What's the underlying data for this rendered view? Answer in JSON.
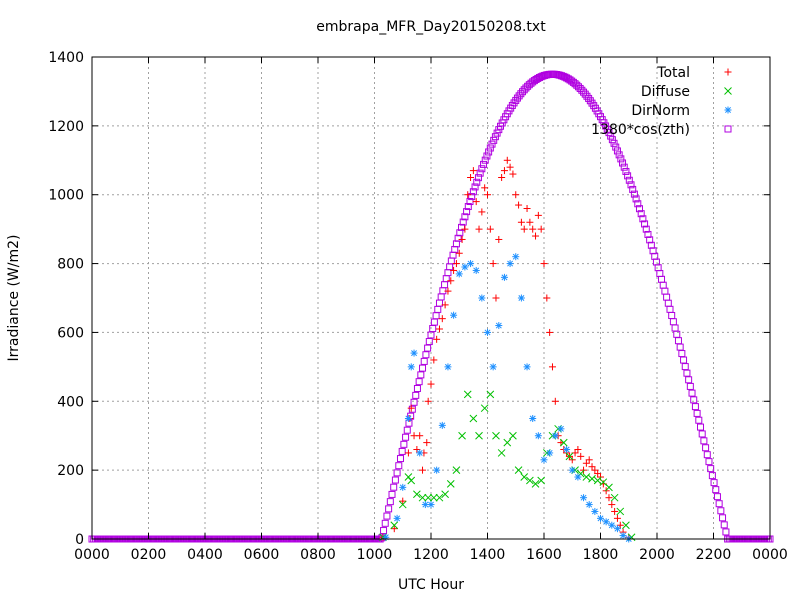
{
  "chart_data": {
    "type": "scatter",
    "title": "embrapa_MFR_Day20150208.txt",
    "xlabel": "UTC Hour",
    "ylabel": "Irradiance (W/m2)",
    "xlim": [
      0,
      24
    ],
    "ylim": [
      0,
      1400
    ],
    "x_ticks": [
      "0000",
      "0200",
      "0400",
      "0600",
      "0800",
      "1000",
      "1200",
      "1400",
      "1600",
      "1800",
      "2000",
      "2200",
      "0000"
    ],
    "y_ticks": [
      "0",
      "200",
      "400",
      "600",
      "800",
      "1000",
      "1200",
      "1400"
    ],
    "grid": true,
    "legend_position": "top-right",
    "series": [
      {
        "name": "Total",
        "color": "#ff0000",
        "marker": "plus",
        "points": [
          [
            10.3,
            5
          ],
          [
            10.7,
            30
          ],
          [
            11.0,
            110
          ],
          [
            11.2,
            250
          ],
          [
            11.25,
            350
          ],
          [
            11.3,
            380
          ],
          [
            11.4,
            300
          ],
          [
            11.5,
            260
          ],
          [
            11.6,
            300
          ],
          [
            11.7,
            200
          ],
          [
            11.75,
            250
          ],
          [
            11.85,
            280
          ],
          [
            11.9,
            400
          ],
          [
            12.0,
            450
          ],
          [
            12.1,
            520
          ],
          [
            12.2,
            580
          ],
          [
            12.3,
            610
          ],
          [
            12.4,
            640
          ],
          [
            12.5,
            680
          ],
          [
            12.6,
            720
          ],
          [
            12.7,
            750
          ],
          [
            12.8,
            780
          ],
          [
            12.9,
            800
          ],
          [
            13.0,
            830
          ],
          [
            13.1,
            870
          ],
          [
            13.2,
            900
          ],
          [
            13.3,
            1000
          ],
          [
            13.4,
            1050
          ],
          [
            13.5,
            1070
          ],
          [
            13.6,
            980
          ],
          [
            13.7,
            900
          ],
          [
            13.8,
            950
          ],
          [
            13.9,
            1020
          ],
          [
            14.0,
            1000
          ],
          [
            14.1,
            900
          ],
          [
            14.2,
            800
          ],
          [
            14.3,
            700
          ],
          [
            14.4,
            870
          ],
          [
            14.5,
            1050
          ],
          [
            14.6,
            1070
          ],
          [
            14.7,
            1100
          ],
          [
            14.8,
            1080
          ],
          [
            14.9,
            1060
          ],
          [
            15.0,
            1000
          ],
          [
            15.1,
            970
          ],
          [
            15.2,
            920
          ],
          [
            15.3,
            900
          ],
          [
            15.4,
            960
          ],
          [
            15.5,
            920
          ],
          [
            15.6,
            900
          ],
          [
            15.7,
            880
          ],
          [
            15.8,
            940
          ],
          [
            15.9,
            900
          ],
          [
            16.0,
            800
          ],
          [
            16.1,
            700
          ],
          [
            16.2,
            600
          ],
          [
            16.3,
            500
          ],
          [
            16.4,
            400
          ],
          [
            16.5,
            300
          ],
          [
            16.6,
            280
          ],
          [
            16.7,
            260
          ],
          [
            16.8,
            250
          ],
          [
            16.9,
            240
          ],
          [
            17.0,
            230
          ],
          [
            17.1,
            250
          ],
          [
            17.2,
            260
          ],
          [
            17.3,
            240
          ],
          [
            17.4,
            200
          ],
          [
            17.5,
            220
          ],
          [
            17.6,
            230
          ],
          [
            17.7,
            210
          ],
          [
            17.8,
            200
          ],
          [
            17.9,
            190
          ],
          [
            18.0,
            180
          ],
          [
            18.1,
            160
          ],
          [
            18.2,
            140
          ],
          [
            18.3,
            120
          ],
          [
            18.4,
            100
          ],
          [
            18.5,
            80
          ],
          [
            18.6,
            60
          ],
          [
            18.7,
            40
          ],
          [
            18.8,
            20
          ],
          [
            19.0,
            5
          ]
        ]
      },
      {
        "name": "Diffuse",
        "color": "#00c000",
        "marker": "cross",
        "points": [
          [
            10.3,
            5
          ],
          [
            10.7,
            40
          ],
          [
            11.0,
            100
          ],
          [
            11.2,
            180
          ],
          [
            11.3,
            170
          ],
          [
            11.5,
            130
          ],
          [
            11.7,
            120
          ],
          [
            11.9,
            120
          ],
          [
            12.1,
            120
          ],
          [
            12.3,
            120
          ],
          [
            12.5,
            130
          ],
          [
            12.7,
            160
          ],
          [
            12.9,
            200
          ],
          [
            13.1,
            300
          ],
          [
            13.3,
            420
          ],
          [
            13.5,
            350
          ],
          [
            13.7,
            300
          ],
          [
            13.9,
            380
          ],
          [
            14.1,
            420
          ],
          [
            14.3,
            300
          ],
          [
            14.5,
            250
          ],
          [
            14.7,
            280
          ],
          [
            14.9,
            300
          ],
          [
            15.1,
            200
          ],
          [
            15.3,
            180
          ],
          [
            15.5,
            170
          ],
          [
            15.7,
            160
          ],
          [
            15.9,
            170
          ],
          [
            16.1,
            250
          ],
          [
            16.3,
            300
          ],
          [
            16.5,
            320
          ],
          [
            16.7,
            280
          ],
          [
            16.9,
            240
          ],
          [
            17.1,
            200
          ],
          [
            17.3,
            190
          ],
          [
            17.5,
            180
          ],
          [
            17.7,
            175
          ],
          [
            17.9,
            170
          ],
          [
            18.1,
            165
          ],
          [
            18.3,
            150
          ],
          [
            18.5,
            120
          ],
          [
            18.7,
            80
          ],
          [
            18.9,
            40
          ],
          [
            19.1,
            5
          ]
        ]
      },
      {
        "name": "DirNorm",
        "color": "#1e90ff",
        "marker": "star",
        "points": [
          [
            10.4,
            5
          ],
          [
            10.8,
            60
          ],
          [
            11.0,
            150
          ],
          [
            11.2,
            350
          ],
          [
            11.3,
            500
          ],
          [
            11.4,
            540
          ],
          [
            11.6,
            250
          ],
          [
            11.8,
            100
          ],
          [
            12.0,
            100
          ],
          [
            12.2,
            200
          ],
          [
            12.4,
            330
          ],
          [
            12.6,
            500
          ],
          [
            12.8,
            650
          ],
          [
            13.0,
            770
          ],
          [
            13.2,
            790
          ],
          [
            13.4,
            800
          ],
          [
            13.6,
            780
          ],
          [
            13.8,
            700
          ],
          [
            14.0,
            600
          ],
          [
            14.2,
            500
          ],
          [
            14.4,
            620
          ],
          [
            14.6,
            760
          ],
          [
            14.8,
            800
          ],
          [
            15.0,
            820
          ],
          [
            15.2,
            700
          ],
          [
            15.4,
            500
          ],
          [
            15.6,
            350
          ],
          [
            15.8,
            300
          ],
          [
            16.0,
            230
          ],
          [
            16.2,
            250
          ],
          [
            16.4,
            300
          ],
          [
            16.6,
            320
          ],
          [
            16.8,
            260
          ],
          [
            17.0,
            200
          ],
          [
            17.2,
            180
          ],
          [
            17.4,
            120
          ],
          [
            17.6,
            100
          ],
          [
            17.8,
            80
          ],
          [
            18.0,
            60
          ],
          [
            18.2,
            50
          ],
          [
            18.4,
            40
          ],
          [
            18.6,
            30
          ],
          [
            18.8,
            10
          ],
          [
            19.0,
            0
          ]
        ]
      },
      {
        "name": "1380*cos(zth)",
        "color": "#b000e0",
        "marker": "square",
        "peak": 1350,
        "rise": 10.25,
        "set": 22.5,
        "noon": 16.3
      }
    ]
  }
}
